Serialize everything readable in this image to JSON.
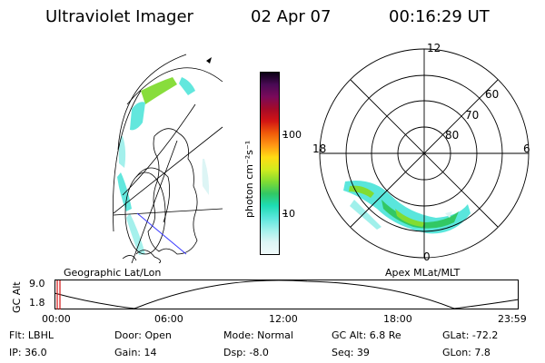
{
  "header": {
    "title": "Ultraviolet Imager",
    "date": "02 Apr 07",
    "time": "00:16:29 UT"
  },
  "geo_panel": {
    "label": "Geographic Lat/Lon"
  },
  "polar_panel": {
    "label": "Apex MLat/MLT",
    "mlt_labels": {
      "top": "12",
      "right": "6",
      "bottom": "0",
      "left": "18"
    },
    "lat_labels": [
      "60",
      "70",
      "80"
    ]
  },
  "colorbar": {
    "unit_label": "photon cm⁻²s⁻¹",
    "ticks": [
      "100",
      "10"
    ],
    "colors": [
      "#0a0014",
      "#4a0a55",
      "#7a0a5a",
      "#a50a28",
      "#d21414",
      "#f05a0a",
      "#ff9614",
      "#ffdc14",
      "#d2eb1e",
      "#82dc32",
      "#32c864",
      "#1edcb4",
      "#5ae6dc",
      "#a0f0eb",
      "#dcf5f5",
      "#f0fafa"
    ]
  },
  "timeline": {
    "axis_label": "GC Alt",
    "y_labels": [
      "9.0",
      "1.8"
    ],
    "x_labels": [
      "00:00",
      "06:00",
      "12:00",
      "18:00",
      "23:59"
    ]
  },
  "footer": {
    "flt": "Flt: LBHL",
    "ip": "IP: 36.0",
    "door": "Door: Open",
    "gain": "Gain: 14",
    "mode": "Mode: Normal",
    "dsp": "Dsp:    -8.0",
    "gcalt": "GC Alt: 6.8 Re",
    "seq": "Seq: 39",
    "glat": "GLat: -72.2",
    "glon": "GLon:    7.8"
  }
}
